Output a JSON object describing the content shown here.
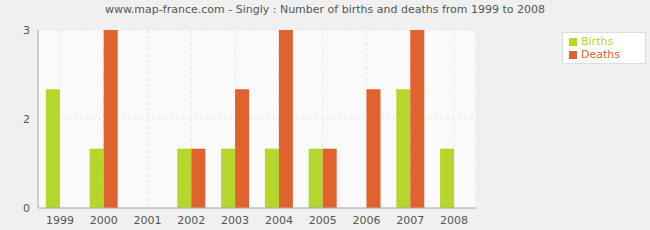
{
  "chart_data": {
    "type": "bar",
    "title": "www.map-france.com - Singly : Number of births and deaths from 1999 to 2008",
    "categories": [
      "1999",
      "2000",
      "2001",
      "2002",
      "2003",
      "2004",
      "2005",
      "2006",
      "2007",
      "2008"
    ],
    "series": [
      {
        "name": "Births",
        "color": "#b5d62a",
        "values": [
          2,
          1,
          0,
          1,
          1,
          1,
          1,
          0,
          2,
          1
        ]
      },
      {
        "name": "Deaths",
        "color": "#e0622e",
        "values": [
          0,
          3,
          0,
          1,
          2,
          3,
          1,
          2,
          3,
          0
        ]
      }
    ],
    "ylim": [
      0,
      3
    ],
    "yticks": [
      0,
      {
        "value": 1.5,
        "label": "2"
      },
      3
    ],
    "grid": true,
    "legend": "upper right"
  }
}
